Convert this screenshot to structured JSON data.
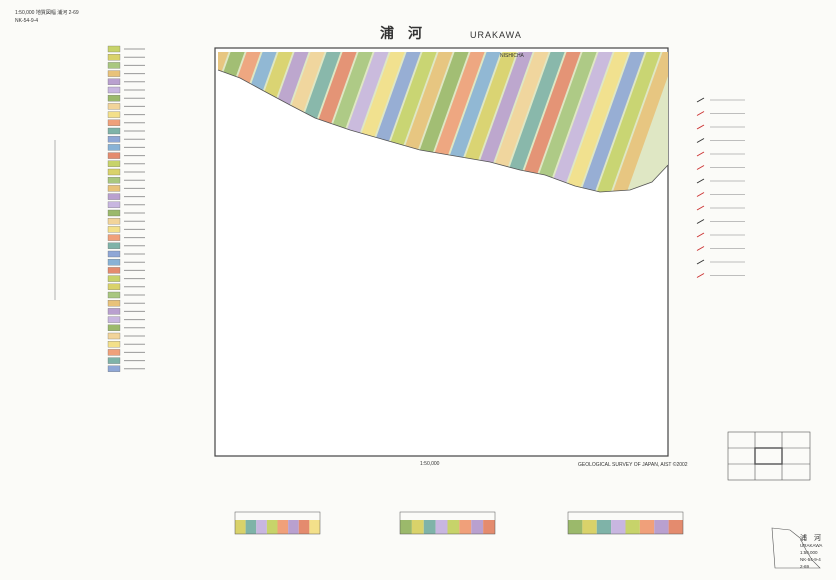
{
  "header": {
    "series": "1:50,000 地質図幅  浦河  2-69",
    "code": "NK-54-9-4",
    "title_ja": "浦　河",
    "title_en": "URAKAWA"
  },
  "map": {
    "place": "NISHICHA",
    "scale": "1:50,000",
    "publisher": "GEOLOGICAL SURVEY OF JAPAN, AIST  ©2002"
  },
  "corner": {
    "title_ja": "浦　河",
    "title_en": "URAKAWA",
    "scale": "1:50,000",
    "code": "NK-54-9-4",
    "number": "2-69"
  }
}
